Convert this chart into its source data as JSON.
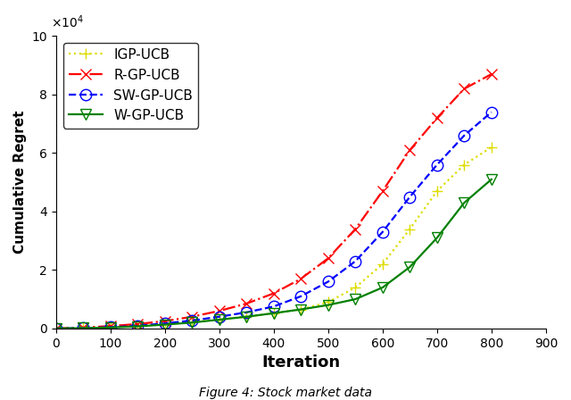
{
  "title": "",
  "xlabel": "Iteration",
  "ylabel": "Cumulative Regret",
  "caption": "Figure 4: Stock market data",
  "xlim": [
    0,
    900
  ],
  "ylim": [
    0,
    100000
  ],
  "xticks": [
    0,
    100,
    200,
    300,
    400,
    500,
    600,
    700,
    800,
    900
  ],
  "yticks": [
    0,
    20000,
    40000,
    60000,
    80000,
    100000
  ],
  "ytick_labels": [
    "0",
    "2",
    "4",
    "6",
    "8",
    "10"
  ],
  "series": {
    "IGP-UCB": {
      "color": "#DDDD00",
      "linestyle": "dotted",
      "marker": "+",
      "markersize": 9,
      "linewidth": 1.6,
      "markerfacecolor": "#DDDD00",
      "x": [
        0,
        50,
        100,
        150,
        200,
        250,
        300,
        350,
        400,
        450,
        500,
        550,
        600,
        650,
        700,
        750,
        800
      ],
      "y": [
        0,
        200,
        500,
        900,
        1500,
        2200,
        3100,
        4000,
        5200,
        6500,
        9000,
        14000,
        22000,
        34000,
        47000,
        56000,
        62000
      ]
    },
    "R-GP-UCB": {
      "color": "#FF0000",
      "linestyle": "dashdot",
      "marker": "x",
      "markersize": 9,
      "linewidth": 1.6,
      "markerfacecolor": "#FF0000",
      "x": [
        0,
        50,
        100,
        150,
        200,
        250,
        300,
        350,
        400,
        450,
        500,
        550,
        600,
        650,
        700,
        750,
        800
      ],
      "y": [
        0,
        300,
        800,
        1500,
        2500,
        4000,
        6000,
        8500,
        12000,
        17000,
        24000,
        34000,
        47000,
        61000,
        72000,
        82000,
        87000
      ]
    },
    "SW-GP-UCB": {
      "color": "#0000FF",
      "linestyle": "dashed",
      "marker": "o",
      "markersize": 9,
      "linewidth": 1.6,
      "markerfacecolor": "none",
      "x": [
        0,
        50,
        100,
        150,
        200,
        250,
        300,
        350,
        400,
        450,
        500,
        550,
        600,
        650,
        700,
        750,
        800
      ],
      "y": [
        0,
        100,
        400,
        900,
        1700,
        2700,
        4000,
        5500,
        7500,
        11000,
        16000,
        23000,
        33000,
        45000,
        56000,
        66000,
        74000
      ]
    },
    "W-GP-UCB": {
      "color": "#008000",
      "linestyle": "solid",
      "marker": "v",
      "markersize": 9,
      "linewidth": 1.6,
      "markerfacecolor": "none",
      "x": [
        0,
        50,
        100,
        150,
        200,
        250,
        300,
        350,
        400,
        450,
        500,
        550,
        600,
        650,
        700,
        750,
        800
      ],
      "y": [
        0,
        100,
        300,
        700,
        1300,
        2000,
        3000,
        4000,
        5200,
        6500,
        8000,
        10000,
        14000,
        21000,
        31000,
        43000,
        51000
      ]
    }
  },
  "legend_order": [
    "IGP-UCB",
    "R-GP-UCB",
    "SW-GP-UCB",
    "W-GP-UCB"
  ],
  "legend_loc": "upper left",
  "legend_fontsize": 11,
  "exponent_label": "$\\times10^4$",
  "exponent_fontsize": 10
}
